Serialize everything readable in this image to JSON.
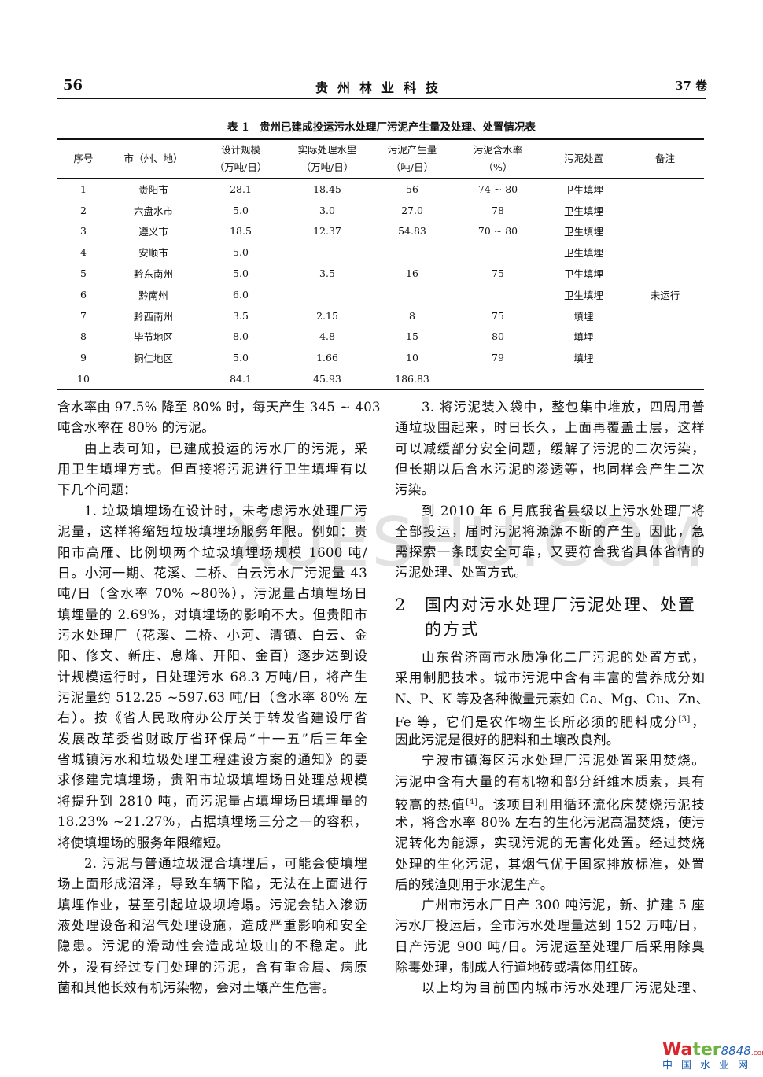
{
  "header": {
    "page_number": "56",
    "journal": "贵州林业科技",
    "volume": "37 卷"
  },
  "table": {
    "caption": "表 1　贵州已建成投运污水处理厂污泥产生量及处理、处置情况表",
    "headers": [
      {
        "l1": "序号",
        "l2": ""
      },
      {
        "l1": "市（州、地）",
        "l2": ""
      },
      {
        "l1": "设计规模",
        "l2": "（万吨/日）"
      },
      {
        "l1": "实际处理水里",
        "l2": "（万吨/日）"
      },
      {
        "l1": "污泥产生量",
        "l2": "（吨/日）"
      },
      {
        "l1": "污泥含水率",
        "l2": "（%）"
      },
      {
        "l1": "污泥处置",
        "l2": ""
      },
      {
        "l1": "备注",
        "l2": ""
      }
    ],
    "rows": [
      [
        "1",
        "贵阳市",
        "28.1",
        "18.45",
        "56",
        "74 ~ 80",
        "卫生填埋",
        ""
      ],
      [
        "2",
        "六盘水市",
        "5.0",
        "3.0",
        "27.0",
        "78",
        "卫生填埋",
        ""
      ],
      [
        "3",
        "遵义市",
        "18.5",
        "12.37",
        "54.83",
        "70 ~ 80",
        "卫生填埋",
        ""
      ],
      [
        "4",
        "安顺市",
        "5.0",
        "",
        "",
        "",
        "卫生填埋",
        ""
      ],
      [
        "5",
        "黔东南州",
        "5.0",
        "3.5",
        "16",
        "75",
        "卫生填埋",
        ""
      ],
      [
        "6",
        "黔南州",
        "6.0",
        "",
        "",
        "",
        "卫生填埋",
        "未运行"
      ],
      [
        "7",
        "黔西南州",
        "3.5",
        "2.15",
        "8",
        "75",
        "填埋",
        ""
      ],
      [
        "8",
        "毕节地区",
        "8.0",
        "4.8",
        "15",
        "80",
        "填埋",
        ""
      ],
      [
        "9",
        "铜仁地区",
        "5.0",
        "1.66",
        "10",
        "79",
        "填埋",
        ""
      ],
      [
        "10",
        "",
        "84.1",
        "45.93",
        "186.83",
        "",
        "",
        ""
      ]
    ]
  },
  "left_column": [
    {
      "t": "含水率由 97.5% 降至 80% 时，每天产生 345 ~ 403"
    },
    {
      "t": "吨含水率在 80% 的污泥。",
      "end": true
    },
    {
      "t": "由上表可知，已建成投运的污水厂的污泥，采",
      "indent": true
    },
    {
      "t": "用卫生填埋方式。但直接将污泥进行卫生填埋有以"
    },
    {
      "t": "下几个问题：",
      "end": true
    },
    {
      "t": "1. 垃圾填埋场在设计时，未考虑污水处理厂污",
      "indent": true
    },
    {
      "t": "泥量，这样将缩短垃圾填埋场服务年限。例如：贵"
    },
    {
      "t": "阳市高雁、比例坝两个垃圾填埋场规模 1600 吨/"
    },
    {
      "t": "日。小河一期、花溪、二桥、白云污水厂污泥量 43"
    },
    {
      "t": "吨/日（含水率 70% ~80%），污泥量占填埋场日"
    },
    {
      "t": "填埋量的 2.69%，对填埋场的影响不大。但贵阳市"
    },
    {
      "t": "污水处理厂（花溪、二桥、小河、清镇、白云、金"
    },
    {
      "t": "阳、修文、新庄、息烽、开阳、金百）逐步达到设"
    },
    {
      "t": "计规模运行时，日处理污水 68.3 万吨/日，将产生"
    },
    {
      "t": "污泥量约 512.25 ~597.63 吨/日（含水率 80% 左"
    },
    {
      "t": "右）。按《省人民政府办公厅关于转发省建设厅省"
    },
    {
      "t": "发展改革委省财政厅省环保局“十一五”后三年全"
    },
    {
      "t": "省城镇污水和垃圾处理工程建设方案的通知》的要"
    },
    {
      "t": "求修建完填埋场，贵阳市垃圾填埋场日处理总规模"
    },
    {
      "t": "将提升到 2810 吨，而污泥量占填埋场日填埋量的"
    },
    {
      "t": "18.23% ~21.27%，占据填埋场三分之一的容积，"
    },
    {
      "t": "将使填埋场的服务年限缩短。",
      "end": true
    },
    {
      "t": "2. 污泥与普通垃圾混合填埋后，可能会使填埋",
      "indent": true
    },
    {
      "t": "场上面形成沼泽，导致车辆下陷，无法在上面进行"
    },
    {
      "t": "填埋作业，甚至引起垃圾坝垮塌。污泥会钻入渗沥"
    },
    {
      "t": "液处理设备和沼气处理设施，造成严重影响和安全"
    },
    {
      "t": "隐患。污泥的滑动性会造成垃圾山的不稳定。此"
    },
    {
      "t": "外，没有经过专门处理的污泥，含有重金属、病原"
    },
    {
      "t": "菌和其他长效有机污染物，会对土壤产生危害。",
      "end": true
    }
  ],
  "right_column_top": [
    {
      "t": "3. 将污泥装入袋中，整包集中堆放，四周用普",
      "indent": true
    },
    {
      "t": "通垃圾围起来，时日长久，上面再覆盖土层，这样"
    },
    {
      "t": "可以减缓部分安全问题，缓解了污泥的二次污染，"
    },
    {
      "t": "但长期以后含水污泥的渗透等，也同样会产生二次"
    },
    {
      "t": "污染。",
      "end": true
    },
    {
      "t": "到 2010 年 6 月底我省县级以上污水处理厂将",
      "indent": true
    },
    {
      "t": "全部投运，届时污泥将源源不断的产生。因此，急"
    },
    {
      "t": "需探索一条既安全可靠，又要符合我省具体省情的"
    },
    {
      "t": "污泥处理、处置方式。",
      "end": true
    }
  ],
  "section": {
    "number": "2",
    "title_line1": "国内对污水处理厂污泥处理、处置",
    "title_line2": "的方式"
  },
  "right_column_bottom": [
    {
      "t": "山东省济南市水质净化二厂污泥的处置方式，",
      "indent": true
    },
    {
      "t": "采用制肥技术。城市污泥中含有丰富的营养成分如"
    },
    {
      "t": "N、P、K 等及各种微量元素如 Ca、Mg、Cu、Zn、"
    },
    {
      "t": "Fe 等，它们是农作物生长所必须的肥料成分",
      "sup": "[3]",
      "after": "，"
    },
    {
      "t": "因此污泥是很好的肥料和土壤改良剂。",
      "end": true
    },
    {
      "t": "宁波市镇海区污水处理厂污泥处置采用焚烧。",
      "indent": true
    },
    {
      "t": "污泥中含有大量的有机物和部分纤维木质素，具有"
    },
    {
      "t": "较高的热值",
      "sup": "[4]",
      "after": "。该项目利用循环流化床焚烧污泥技"
    },
    {
      "t": "术，将含水率 80% 左右的生化污泥高温焚烧，使污"
    },
    {
      "t": "泥转化为能源，实现污泥的无害化处置。经过焚烧"
    },
    {
      "t": "处理的生化污泥，其烟气优于国家排放标准，处置"
    },
    {
      "t": "后的残渣则用于水泥生产。",
      "end": true
    },
    {
      "t": "广州市污水厂日产 300 吨污泥，新、扩建 5 座",
      "indent": true
    },
    {
      "t": "污水厂投运后，全市污水处理量达到 152 万吨/日，"
    },
    {
      "t": "日产污泥 900 吨/日。污泥运至处理厂后采用除臭"
    },
    {
      "t": "除毒处理，制成人行道地砖或墙体用红砖。",
      "end": true
    },
    {
      "t": "以上均为目前国内城市污水处理厂污泥处理、",
      "indent": true
    }
  ],
  "watermark": "XUESHU.COM",
  "logo": {
    "wa": "Wa",
    "ter": "ter",
    "num": "8848",
    "com": ".com",
    "cn": "中国水业网"
  }
}
